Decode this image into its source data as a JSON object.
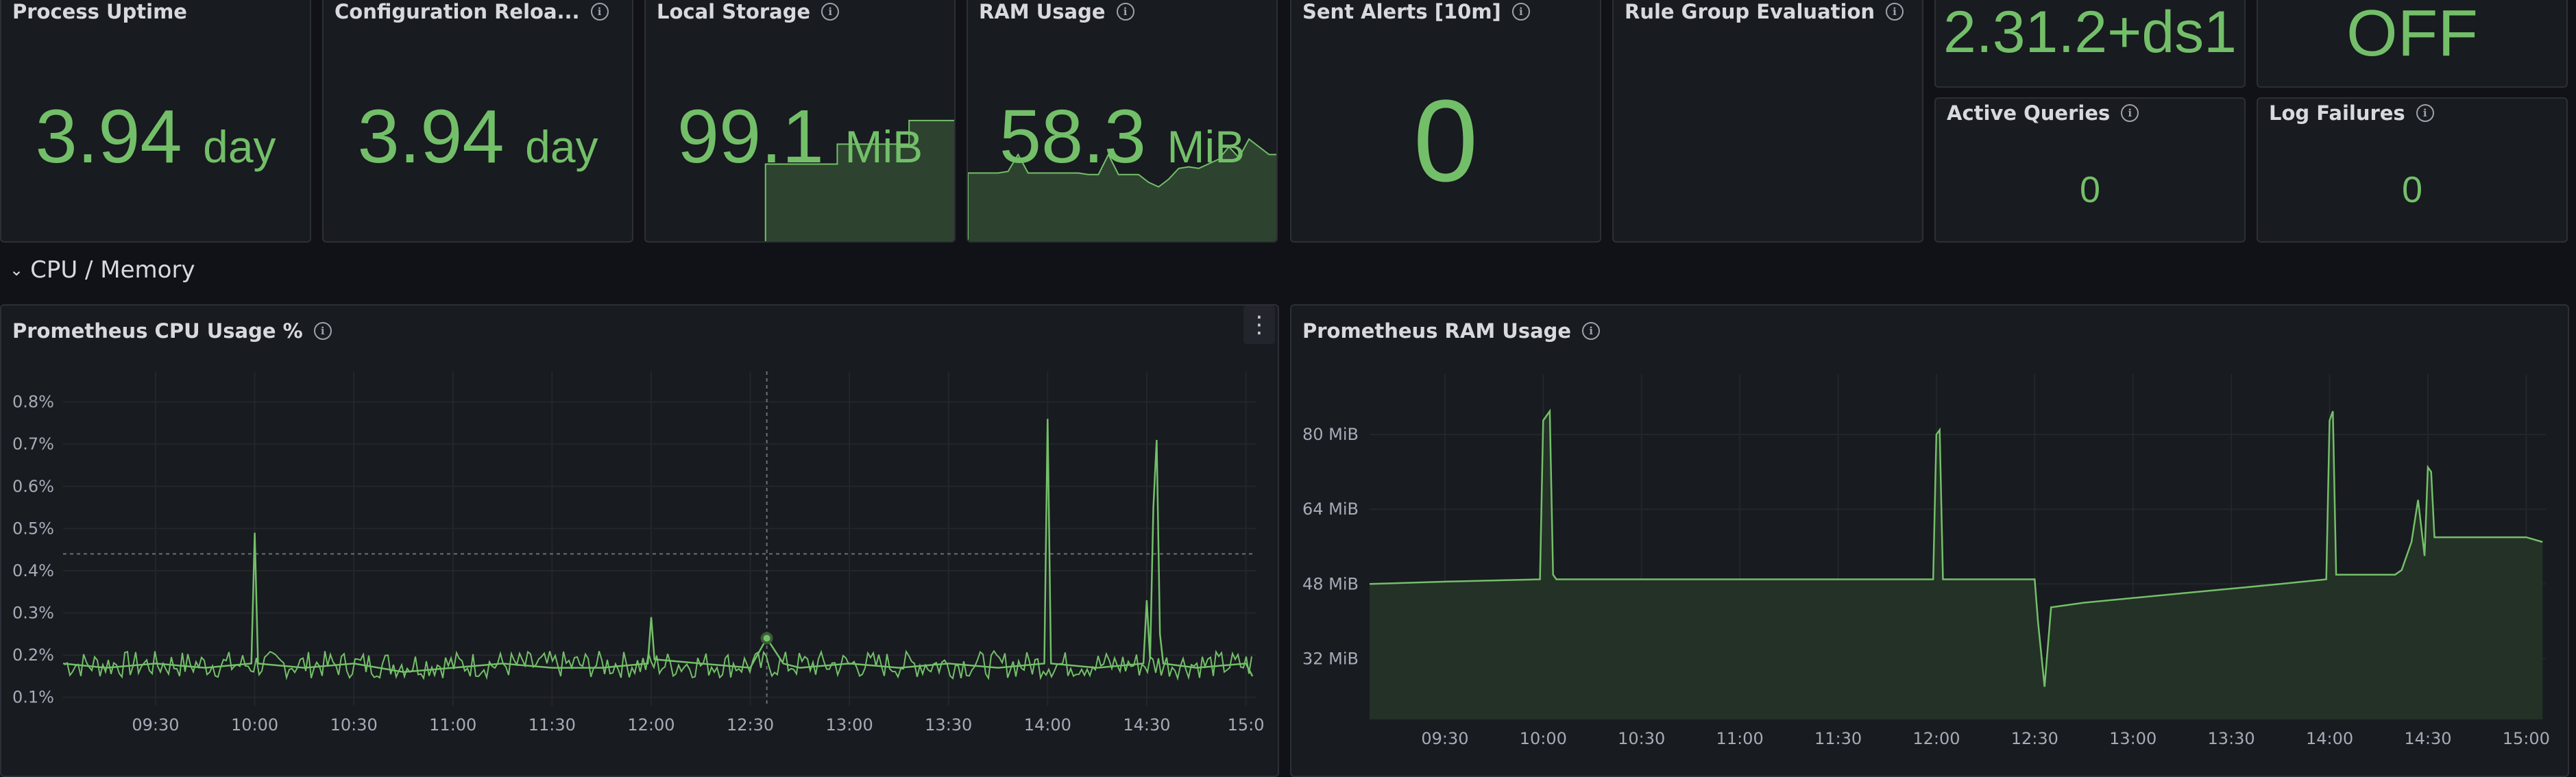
{
  "stats": [
    {
      "title": "Process Uptime",
      "value": "3.94",
      "unit": "day",
      "info": false
    },
    {
      "title": "Configuration Reloa...",
      "value": "3.94",
      "unit": "day",
      "info": true
    },
    {
      "title": "Local Storage",
      "value": "99.1",
      "unit": "MiB",
      "info": true
    },
    {
      "title": "RAM Usage",
      "value": "58.3",
      "unit": "MiB",
      "info": true
    },
    {
      "title": "Sent Alerts [10m]",
      "value": "0",
      "unit": "",
      "info": true
    },
    {
      "title": "Rule Group Evaluation",
      "value": "",
      "unit": "",
      "info": true
    },
    {
      "title": "",
      "value": "2.31.2+ds1",
      "unit": "",
      "info": false
    },
    {
      "title": "",
      "value": "OFF",
      "unit": "",
      "info": false
    },
    {
      "title": "Active Queries",
      "value": "0",
      "unit": "",
      "info": true
    },
    {
      "title": "Log Failures",
      "value": "0",
      "unit": "",
      "info": true
    }
  ],
  "section": {
    "title": "CPU / Memory"
  },
  "colors": {
    "accent": "#73bf69",
    "panel": "#181b1f",
    "background": "#111217"
  },
  "chart_data": [
    {
      "type": "line",
      "title": "Prometheus CPU Usage %",
      "y_ticks": [
        "0.8%",
        "0.7%",
        "0.6%",
        "0.5%",
        "0.4%",
        "0.3%",
        "0.2%",
        "0.1%"
      ],
      "x_ticks": [
        "09:30",
        "10:00",
        "10:30",
        "11:00",
        "11:30",
        "12:00",
        "12:30",
        "13:00",
        "13:30",
        "14:00",
        "14:30",
        "15:0"
      ],
      "ylim": [
        0.08,
        0.84
      ],
      "xlim": [
        "09:02",
        "15:03"
      ],
      "threshold": 0.44,
      "series": [
        {
          "x": [
            "09:02",
            "09:15",
            "09:30",
            "09:45",
            "09:59",
            "10:00",
            "10:01",
            "10:15",
            "10:30",
            "10:45",
            "11:00",
            "11:15",
            "11:30",
            "11:45",
            "11:59",
            "12:00",
            "12:01",
            "12:15",
            "12:30",
            "12:35",
            "12:40",
            "12:45",
            "13:00",
            "13:15",
            "13:30",
            "13:45",
            "13:59",
            "14:00",
            "14:01",
            "14:15",
            "14:29",
            "14:30",
            "14:31",
            "14:32",
            "14:33",
            "14:34",
            "14:35",
            "14:45",
            "15:00",
            "15:02"
          ],
          "values": [
            0.18,
            0.17,
            0.18,
            0.17,
            0.18,
            0.49,
            0.18,
            0.17,
            0.18,
            0.16,
            0.17,
            0.18,
            0.17,
            0.17,
            0.18,
            0.29,
            0.19,
            0.18,
            0.17,
            0.24,
            0.18,
            0.17,
            0.18,
            0.17,
            0.18,
            0.17,
            0.18,
            0.76,
            0.18,
            0.17,
            0.18,
            0.33,
            0.19,
            0.55,
            0.71,
            0.25,
            0.18,
            0.17,
            0.18,
            0.15
          ]
        }
      ]
    },
    {
      "type": "area",
      "title": "Prometheus RAM Usage",
      "y_ticks": [
        "80 MiB",
        "64 MiB",
        "48 MiB",
        "32 MiB"
      ],
      "x_ticks": [
        "09:30",
        "10:00",
        "10:30",
        "11:00",
        "11:30",
        "12:00",
        "12:30",
        "13:00",
        "13:30",
        "14:00",
        "14:30",
        "15:00"
      ],
      "ylim": [
        19,
        90
      ],
      "xlim": [
        "09:07",
        "15:06"
      ],
      "series": [
        {
          "x": [
            "09:07",
            "09:30",
            "09:59",
            "10:00",
            "10:02",
            "10:03",
            "10:04",
            "10:30",
            "11:00",
            "11:30",
            "11:59",
            "12:00",
            "12:01",
            "12:02",
            "12:30",
            "12:31",
            "12:33",
            "12:35",
            "12:45",
            "13:00",
            "13:15",
            "13:30",
            "13:45",
            "13:59",
            "14:00",
            "14:01",
            "14:02",
            "14:20",
            "14:22",
            "14:25",
            "14:27",
            "14:29",
            "14:30",
            "14:31",
            "14:32",
            "14:33",
            "14:35",
            "14:37",
            "14:40",
            "14:50",
            "15:00",
            "15:05"
          ],
          "values": [
            48,
            48.5,
            49,
            83,
            85,
            50,
            49,
            49,
            49,
            49,
            49,
            80,
            81,
            49,
            49,
            40,
            26,
            43,
            44,
            45,
            46,
            47,
            48,
            49,
            83,
            85,
            50,
            50,
            51,
            57,
            66,
            54,
            73,
            72,
            58,
            58,
            58,
            58,
            58,
            58,
            58,
            57
          ]
        }
      ]
    }
  ],
  "local_storage_spark": [
    0,
    0,
    0,
    64,
    64,
    64,
    80,
    80,
    80,
    99,
    99,
    99
  ],
  "ram_spark": [
    46,
    46,
    46,
    46,
    47,
    58,
    46,
    46,
    46,
    46,
    46,
    46,
    45,
    45,
    58,
    45,
    45,
    45,
    40,
    37,
    42,
    49,
    50,
    49,
    52,
    55,
    63,
    56,
    68,
    63,
    58,
    58
  ]
}
